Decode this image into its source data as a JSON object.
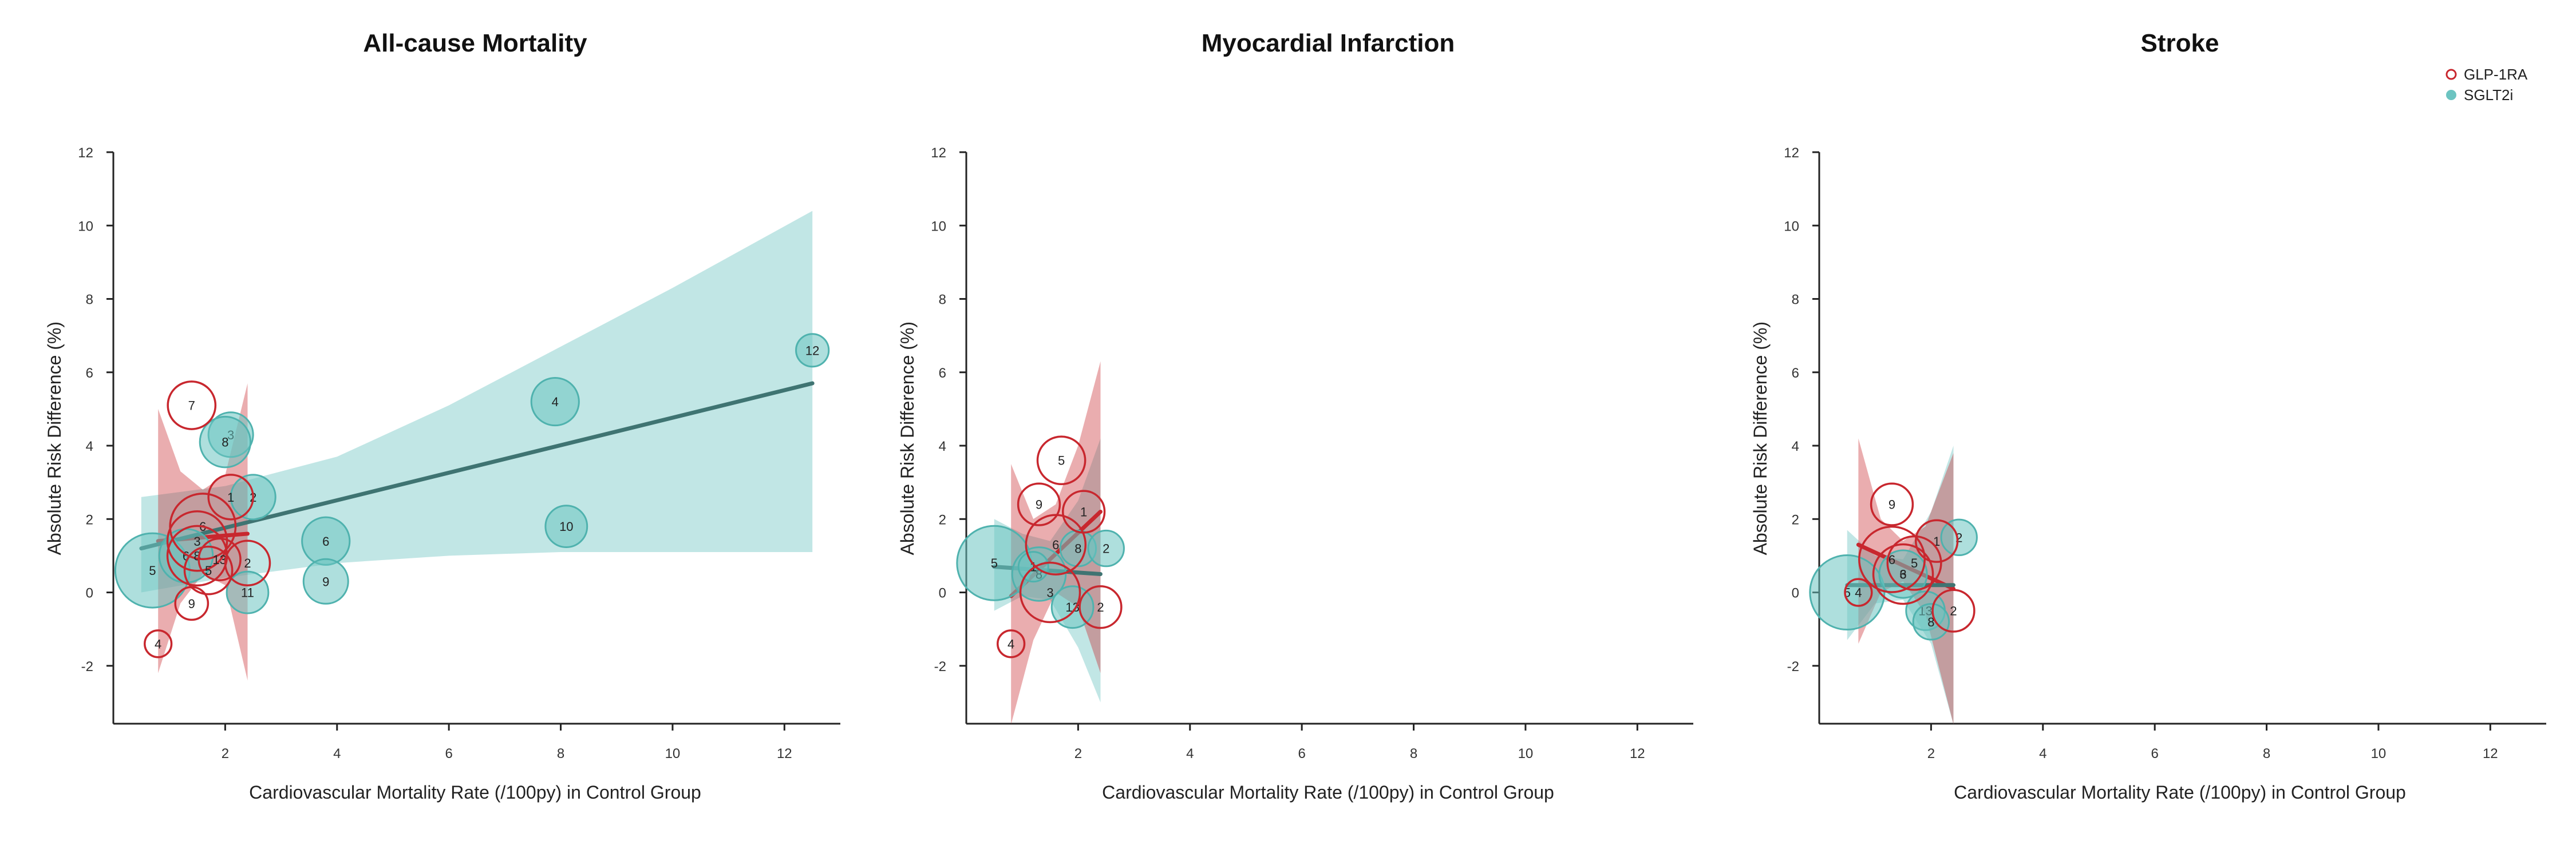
{
  "chart_data": [
    {
      "type": "scatter",
      "title": "All-cause Mortality",
      "xlabel": "Cardiovascular Mortality Rate (/100py) in Control Group",
      "ylabel": "Absolute Risk Difference (%)",
      "xlim": [
        0,
        13
      ],
      "ylim": [
        -3.5,
        12
      ],
      "xticks": [
        2,
        4,
        6,
        8,
        10,
        12
      ],
      "yticks": [
        -2,
        0,
        2,
        4,
        6,
        8,
        10,
        12
      ],
      "series": [
        {
          "name": "GLP-1RA",
          "color": "#c8272e",
          "marker": "open-circle",
          "points": [
            {
              "x": 0.8,
              "y": -1.4,
              "label": "4",
              "size": 0.9
            },
            {
              "x": 1.4,
              "y": 5.1,
              "label": "7",
              "size": 1.6
            },
            {
              "x": 1.4,
              "y": -0.3,
              "label": "9",
              "size": 1.1
            },
            {
              "x": 2.1,
              "y": 2.6,
              "label": "1",
              "size": 1.5
            },
            {
              "x": 1.6,
              "y": 1.8,
              "label": "6",
              "size": 2.2
            },
            {
              "x": 1.5,
              "y": 1.4,
              "label": "3",
              "size": 2.0
            },
            {
              "x": 1.5,
              "y": 1.0,
              "label": "8",
              "size": 2.0
            },
            {
              "x": 1.9,
              "y": 0.9,
              "label": "13",
              "size": 1.4
            },
            {
              "x": 1.7,
              "y": 0.6,
              "label": "5",
              "size": 1.6
            },
            {
              "x": 2.4,
              "y": 0.8,
              "label": "2",
              "size": 1.5
            }
          ],
          "fit": {
            "x": [
              0.8,
              2.4
            ],
            "y": [
              1.4,
              1.6
            ]
          },
          "band": {
            "x": [
              0.8,
              1.2,
              1.6,
              2.0,
              2.4
            ],
            "lower": [
              -2.2,
              -0.3,
              0.5,
              0.2,
              -2.4
            ],
            "upper": [
              5.0,
              3.3,
              2.8,
              3.2,
              5.7
            ]
          }
        },
        {
          "name": "SGLT2i",
          "color": "#6cc4c1",
          "marker": "filled-circle",
          "points": [
            {
              "x": 0.7,
              "y": 0.6,
              "label": "5",
              "size": 2.5
            },
            {
              "x": 1.3,
              "y": 1.0,
              "label": "6",
              "size": 1.8
            },
            {
              "x": 2.1,
              "y": 4.3,
              "label": "3",
              "size": 1.5
            },
            {
              "x": 2.0,
              "y": 4.1,
              "label": "8",
              "size": 1.7
            },
            {
              "x": 2.5,
              "y": 2.6,
              "label": "2",
              "size": 1.5
            },
            {
              "x": 2.4,
              "y": 0.0,
              "label": "11",
              "size": 1.4
            },
            {
              "x": 3.8,
              "y": 1.4,
              "label": "6",
              "size": 1.6
            },
            {
              "x": 3.8,
              "y": 0.3,
              "label": "9",
              "size": 1.5
            },
            {
              "x": 7.9,
              "y": 5.2,
              "label": "4",
              "size": 1.6
            },
            {
              "x": 8.1,
              "y": 1.8,
              "label": "10",
              "size": 1.4
            },
            {
              "x": 12.5,
              "y": 6.6,
              "label": "12",
              "size": 1.1
            }
          ],
          "fit": {
            "x": [
              0.5,
              12.5
            ],
            "y": [
              1.2,
              5.7
            ]
          },
          "band": {
            "x": [
              0.5,
              2.0,
              4.0,
              6.0,
              8.0,
              10.0,
              12.5
            ],
            "lower": [
              0.0,
              0.4,
              0.8,
              1.0,
              1.1,
              1.1,
              1.1
            ],
            "upper": [
              2.6,
              2.9,
              3.7,
              5.1,
              6.7,
              8.3,
              10.4
            ]
          }
        }
      ]
    },
    {
      "type": "scatter",
      "title": "Myocardial Infarction",
      "xlabel": "Cardiovascular Mortality Rate (/100py) in Control Group",
      "ylabel": "Absolute Risk Difference (%)",
      "xlim": [
        0,
        13
      ],
      "ylim": [
        -3.5,
        12
      ],
      "xticks": [
        2,
        4,
        6,
        8,
        10,
        12
      ],
      "yticks": [
        -2,
        0,
        2,
        4,
        6,
        8,
        10,
        12
      ],
      "series": [
        {
          "name": "GLP-1RA",
          "color": "#c8272e",
          "marker": "open-circle",
          "points": [
            {
              "x": 0.8,
              "y": -1.4,
              "label": "4",
              "size": 0.9
            },
            {
              "x": 1.7,
              "y": 3.6,
              "label": "5",
              "size": 1.6
            },
            {
              "x": 1.3,
              "y": 2.4,
              "label": "9",
              "size": 1.4
            },
            {
              "x": 2.1,
              "y": 2.2,
              "label": "1",
              "size": 1.4
            },
            {
              "x": 1.6,
              "y": 1.3,
              "label": "6",
              "size": 2.0
            },
            {
              "x": 1.5,
              "y": 0.0,
              "label": "3",
              "size": 2.0
            },
            {
              "x": 2.4,
              "y": -0.4,
              "label": "2",
              "size": 1.4
            }
          ],
          "fit": {
            "x": [
              0.8,
              2.4
            ],
            "y": [
              -0.1,
              2.2
            ]
          },
          "band": {
            "x": [
              0.8,
              1.2,
              1.6,
              2.0,
              2.4
            ],
            "lower": [
              -3.6,
              -1.3,
              0.0,
              -0.4,
              -2.2
            ],
            "upper": [
              3.5,
              2.0,
              2.4,
              4.0,
              6.3
            ]
          }
        },
        {
          "name": "SGLT2i",
          "color": "#6cc4c1",
          "marker": "filled-circle",
          "points": [
            {
              "x": 0.5,
              "y": 0.8,
              "label": "5",
              "size": 2.5
            },
            {
              "x": 1.3,
              "y": 0.5,
              "label": "8",
              "size": 1.8
            },
            {
              "x": 2.0,
              "y": 1.2,
              "label": "8",
              "size": 1.2
            },
            {
              "x": 2.5,
              "y": 1.2,
              "label": "2",
              "size": 1.2
            },
            {
              "x": 1.9,
              "y": -0.4,
              "label": "13",
              "size": 1.4
            },
            {
              "x": 1.2,
              "y": 0.7,
              "label": "1",
              "size": 1.0
            }
          ],
          "fit": {
            "x": [
              0.5,
              2.4
            ],
            "y": [
              0.7,
              0.5
            ]
          },
          "band": {
            "x": [
              0.5,
              1.0,
              1.5,
              2.0,
              2.4
            ],
            "lower": [
              -0.5,
              -0.1,
              -0.2,
              -1.5,
              -3.0
            ],
            "upper": [
              2.0,
              1.6,
              1.4,
              2.5,
              4.2
            ]
          }
        }
      ]
    },
    {
      "type": "scatter",
      "title": "Stroke",
      "xlabel": "Cardiovascular Mortality Rate (/100py) in Control Group",
      "ylabel": "Absolute Risk Difference (%)",
      "xlim": [
        0,
        13
      ],
      "ylim": [
        -3.5,
        12
      ],
      "xticks": [
        2,
        4,
        6,
        8,
        10,
        12
      ],
      "yticks": [
        -2,
        0,
        2,
        4,
        6,
        8,
        10,
        12
      ],
      "series": [
        {
          "name": "GLP-1RA",
          "color": "#c8272e",
          "marker": "open-circle",
          "points": [
            {
              "x": 1.3,
              "y": 2.4,
              "label": "9",
              "size": 1.4
            },
            {
              "x": 2.1,
              "y": 1.4,
              "label": "1",
              "size": 1.4
            },
            {
              "x": 1.3,
              "y": 0.9,
              "label": "6",
              "size": 2.2
            },
            {
              "x": 1.7,
              "y": 0.8,
              "label": "5",
              "size": 1.8
            },
            {
              "x": 1.5,
              "y": 0.5,
              "label": "3",
              "size": 2.0
            },
            {
              "x": 0.7,
              "y": 0.0,
              "label": "4",
              "size": 0.9
            },
            {
              "x": 2.4,
              "y": -0.5,
              "label": "2",
              "size": 1.4
            }
          ],
          "fit": {
            "x": [
              0.7,
              2.4
            ],
            "y": [
              1.3,
              0.1
            ]
          },
          "band": {
            "x": [
              0.7,
              1.1,
              1.5,
              1.9,
              2.4
            ],
            "lower": [
              -1.4,
              0.0,
              0.3,
              -0.6,
              -3.6
            ],
            "upper": [
              4.2,
              2.0,
              1.4,
              1.8,
              3.8
            ]
          }
        },
        {
          "name": "SGLT2i",
          "color": "#6cc4c1",
          "marker": "filled-circle",
          "points": [
            {
              "x": 0.5,
              "y": 0.0,
              "label": "5",
              "size": 2.5
            },
            {
              "x": 1.5,
              "y": 0.5,
              "label": "6",
              "size": 1.6
            },
            {
              "x": 2.5,
              "y": 1.5,
              "label": "2",
              "size": 1.2
            },
            {
              "x": 1.9,
              "y": -0.5,
              "label": "13",
              "size": 1.3
            },
            {
              "x": 2.0,
              "y": -0.8,
              "label": "8",
              "size": 1.2
            }
          ],
          "fit": {
            "x": [
              0.5,
              2.4
            ],
            "y": [
              0.2,
              0.2
            ]
          },
          "band": {
            "x": [
              0.5,
              1.0,
              1.5,
              2.0,
              2.4
            ],
            "lower": [
              -1.3,
              -0.3,
              -0.2,
              -1.4,
              -3.6
            ],
            "upper": [
              1.7,
              1.0,
              0.9,
              2.2,
              4.0
            ]
          }
        }
      ]
    }
  ],
  "legend": {
    "placement": "top-right",
    "items": [
      {
        "label": "GLP-1RA",
        "color": "#c8272e",
        "marker": "open-circle"
      },
      {
        "label": "SGLT2i",
        "color": "#6cc4c1",
        "marker": "filled-circle"
      }
    ]
  }
}
